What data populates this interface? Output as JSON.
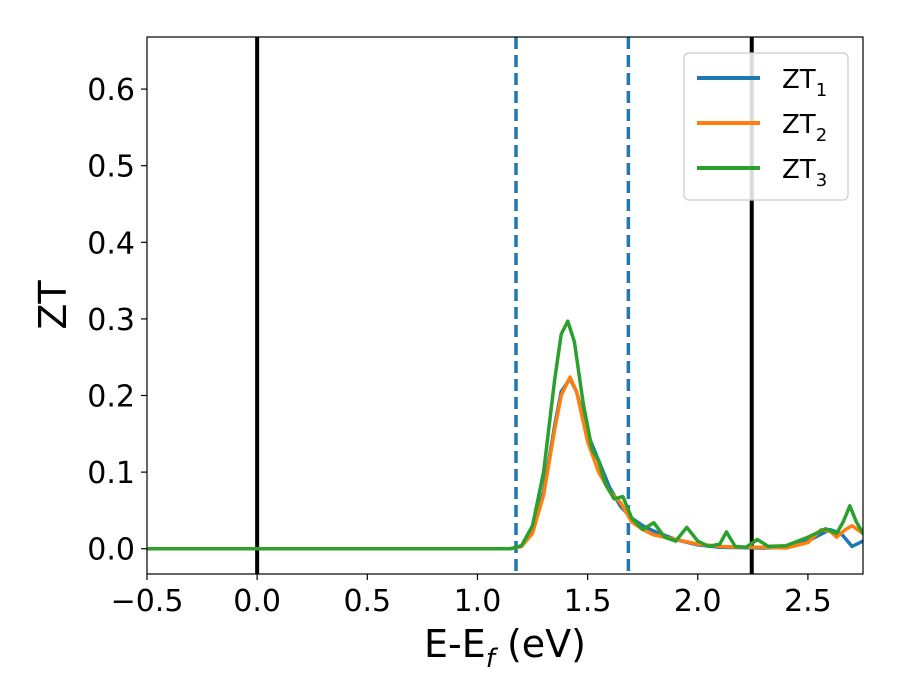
{
  "chart_data": {
    "type": "line",
    "xlabel": {
      "main": "E-E",
      "sub": "f",
      "suffix": " (eV)"
    },
    "ylabel": "ZT",
    "xlim": [
      -0.5,
      2.75
    ],
    "ylim": [
      -0.033,
      0.668
    ],
    "xticks": [
      -0.5,
      0.0,
      0.5,
      1.0,
      1.5,
      2.0,
      2.5
    ],
    "xtick_labels": [
      "−0.5",
      "0.0",
      "0.5",
      "1.0",
      "1.5",
      "2.0",
      "2.5"
    ],
    "yticks": [
      0.0,
      0.1,
      0.2,
      0.3,
      0.4,
      0.5,
      0.6
    ],
    "ytick_labels": [
      "0.0",
      "0.1",
      "0.2",
      "0.3",
      "0.4",
      "0.5",
      "0.6"
    ],
    "grid": false,
    "legend_position": "top-right",
    "vlines": [
      {
        "x": 0.0,
        "style": "solid",
        "color": "#000000"
      },
      {
        "x": 2.245,
        "style": "solid",
        "color": "#000000"
      },
      {
        "x": 1.175,
        "style": "dashed",
        "color": "#1f77b4"
      },
      {
        "x": 1.685,
        "style": "dashed",
        "color": "#1f77b4"
      }
    ],
    "series": [
      {
        "name": "ZT",
        "name_sub": "1",
        "color": "#1f77b4",
        "points": [
          [
            -0.5,
            0
          ],
          [
            1.15,
            0
          ],
          [
            1.2,
            0.003
          ],
          [
            1.25,
            0.022
          ],
          [
            1.3,
            0.075
          ],
          [
            1.35,
            0.16
          ],
          [
            1.38,
            0.205
          ],
          [
            1.42,
            0.222
          ],
          [
            1.45,
            0.205
          ],
          [
            1.5,
            0.15
          ],
          [
            1.55,
            0.115
          ],
          [
            1.6,
            0.08
          ],
          [
            1.65,
            0.055
          ],
          [
            1.7,
            0.04
          ],
          [
            1.75,
            0.03
          ],
          [
            1.8,
            0.023
          ],
          [
            1.9,
            0.012
          ],
          [
            2.0,
            0.005
          ],
          [
            2.1,
            0.002
          ],
          [
            2.3,
            0.001
          ],
          [
            2.4,
            0.002
          ],
          [
            2.5,
            0.01
          ],
          [
            2.6,
            0.025
          ],
          [
            2.65,
            0.02
          ],
          [
            2.7,
            0.003
          ],
          [
            2.75,
            0.01
          ]
        ]
      },
      {
        "name": "ZT",
        "name_sub": "2",
        "color": "#ff7f0e",
        "points": [
          [
            -0.5,
            0
          ],
          [
            1.15,
            0
          ],
          [
            1.2,
            0.003
          ],
          [
            1.25,
            0.02
          ],
          [
            1.3,
            0.07
          ],
          [
            1.35,
            0.155
          ],
          [
            1.38,
            0.2
          ],
          [
            1.42,
            0.224
          ],
          [
            1.45,
            0.205
          ],
          [
            1.5,
            0.14
          ],
          [
            1.55,
            0.1
          ],
          [
            1.6,
            0.075
          ],
          [
            1.65,
            0.06
          ],
          [
            1.7,
            0.035
          ],
          [
            1.75,
            0.025
          ],
          [
            1.8,
            0.018
          ],
          [
            1.9,
            0.012
          ],
          [
            2.0,
            0.006
          ],
          [
            2.1,
            0.003
          ],
          [
            2.2,
            0.002
          ],
          [
            2.3,
            0.002
          ],
          [
            2.4,
            0.001
          ],
          [
            2.5,
            0.008
          ],
          [
            2.56,
            0.025
          ],
          [
            2.6,
            0.023
          ],
          [
            2.63,
            0.015
          ],
          [
            2.67,
            0.025
          ],
          [
            2.7,
            0.03
          ],
          [
            2.75,
            0.02
          ]
        ]
      },
      {
        "name": "ZT",
        "name_sub": "3",
        "color": "#2ca02c",
        "points": [
          [
            -0.5,
            0
          ],
          [
            1.15,
            0
          ],
          [
            1.2,
            0.004
          ],
          [
            1.25,
            0.03
          ],
          [
            1.3,
            0.1
          ],
          [
            1.35,
            0.22
          ],
          [
            1.38,
            0.28
          ],
          [
            1.41,
            0.297
          ],
          [
            1.44,
            0.27
          ],
          [
            1.48,
            0.19
          ],
          [
            1.52,
            0.13
          ],
          [
            1.55,
            0.115
          ],
          [
            1.58,
            0.085
          ],
          [
            1.62,
            0.065
          ],
          [
            1.66,
            0.068
          ],
          [
            1.7,
            0.04
          ],
          [
            1.75,
            0.025
          ],
          [
            1.8,
            0.034
          ],
          [
            1.85,
            0.015
          ],
          [
            1.9,
            0.01
          ],
          [
            1.95,
            0.028
          ],
          [
            2.0,
            0.01
          ],
          [
            2.05,
            0.003
          ],
          [
            2.1,
            0.006
          ],
          [
            2.13,
            0.022
          ],
          [
            2.17,
            0.003
          ],
          [
            2.22,
            0.002
          ],
          [
            2.27,
            0.012
          ],
          [
            2.32,
            0.003
          ],
          [
            2.4,
            0.004
          ],
          [
            2.5,
            0.015
          ],
          [
            2.58,
            0.026
          ],
          [
            2.63,
            0.02
          ],
          [
            2.66,
            0.035
          ],
          [
            2.69,
            0.056
          ],
          [
            2.72,
            0.035
          ],
          [
            2.75,
            0.02
          ]
        ]
      }
    ]
  }
}
